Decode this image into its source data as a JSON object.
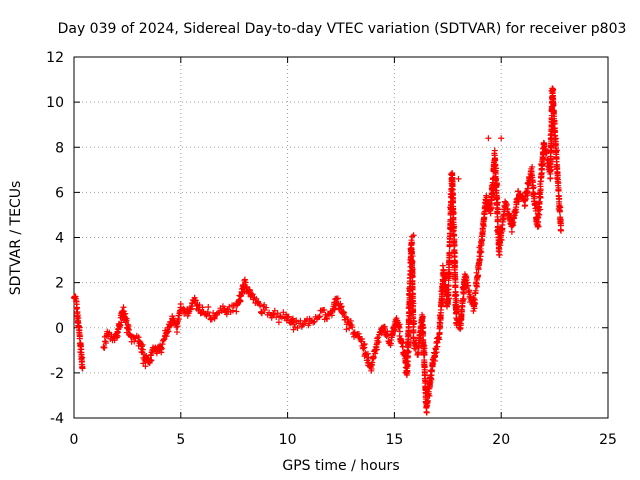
{
  "chart_data": {
    "type": "scatter",
    "title": "Day 039 of 2024, Sidereal Day-to-day VTEC variation (SDTVAR) for receiver p803",
    "xlabel": "GPS time / hours",
    "ylabel": "SDTVAR / TECUs",
    "xlim": [
      0,
      25
    ],
    "ylim": [
      -4,
      12
    ],
    "xticks": [
      0,
      5,
      10,
      15,
      20,
      25
    ],
    "yticks": [
      -4,
      -2,
      0,
      2,
      4,
      6,
      8,
      10,
      12
    ],
    "grid": true,
    "marker": "+",
    "marker_color": "#ff0000",
    "series": [
      {
        "name": "SDTVAR",
        "trace": [
          [
            0.0,
            1.5
          ],
          [
            0.1,
            1.1
          ],
          [
            0.2,
            0.2
          ],
          [
            0.3,
            -0.7
          ],
          [
            0.4,
            -1.8
          ],
          [
            1.4,
            -0.8
          ],
          [
            1.6,
            -0.3
          ],
          [
            1.8,
            -0.5
          ],
          [
            2.0,
            -0.4
          ],
          [
            2.3,
            0.8
          ],
          [
            2.5,
            0.1
          ],
          [
            2.7,
            -0.6
          ],
          [
            3.0,
            -0.5
          ],
          [
            3.3,
            -1.3
          ],
          [
            3.5,
            -1.6
          ],
          [
            3.7,
            -1.0
          ],
          [
            4.0,
            -1.0
          ],
          [
            4.2,
            -0.6
          ],
          [
            4.6,
            0.4
          ],
          [
            4.8,
            0.0
          ],
          [
            5.0,
            0.9
          ],
          [
            5.3,
            0.7
          ],
          [
            5.6,
            1.2
          ],
          [
            6.0,
            0.6
          ],
          [
            6.4,
            0.5
          ],
          [
            6.8,
            0.7
          ],
          [
            7.2,
            0.9
          ],
          [
            7.6,
            0.8
          ],
          [
            8.0,
            2.0
          ],
          [
            8.4,
            1.3
          ],
          [
            8.8,
            0.8
          ],
          [
            9.2,
            0.7
          ],
          [
            9.6,
            0.6
          ],
          [
            10.0,
            0.5
          ],
          [
            10.4,
            0.1
          ],
          [
            10.8,
            0.2
          ],
          [
            11.2,
            0.4
          ],
          [
            11.6,
            0.7
          ],
          [
            12.0,
            0.5
          ],
          [
            12.3,
            1.3
          ],
          [
            12.7,
            0.4
          ],
          [
            13.1,
            -0.2
          ],
          [
            13.5,
            -0.7
          ],
          [
            13.9,
            -1.8
          ],
          [
            14.2,
            -0.6
          ],
          [
            14.5,
            0.0
          ],
          [
            14.8,
            -0.7
          ],
          [
            15.1,
            0.4
          ],
          [
            15.4,
            -0.9
          ],
          [
            15.6,
            -2.0
          ],
          [
            15.8,
            3.9
          ],
          [
            15.9,
            -0.6
          ],
          [
            16.1,
            -1.1
          ],
          [
            16.3,
            0.5
          ],
          [
            16.5,
            -3.6
          ],
          [
            16.7,
            -2.2
          ],
          [
            16.9,
            -1.0
          ],
          [
            17.1,
            -0.4
          ],
          [
            17.3,
            2.5
          ],
          [
            17.5,
            1.0
          ],
          [
            17.7,
            6.9
          ],
          [
            17.9,
            0.3
          ],
          [
            18.1,
            0.1
          ],
          [
            18.3,
            2.4
          ],
          [
            18.5,
            1.6
          ],
          [
            18.7,
            0.9
          ],
          [
            18.9,
            2.4
          ],
          [
            19.1,
            4.0
          ],
          [
            19.3,
            5.8
          ],
          [
            19.5,
            5.1
          ],
          [
            19.7,
            7.7
          ],
          [
            19.9,
            3.4
          ],
          [
            20.2,
            5.6
          ],
          [
            20.5,
            4.4
          ],
          [
            20.8,
            6.0
          ],
          [
            21.1,
            5.5
          ],
          [
            21.4,
            7.0
          ],
          [
            21.7,
            4.5
          ],
          [
            22.0,
            8.2
          ],
          [
            22.3,
            6.8
          ],
          [
            22.4,
            10.6
          ],
          [
            22.6,
            7.3
          ],
          [
            22.8,
            4.3
          ]
        ],
        "stray_points": [
          [
            18.0,
            6.6
          ],
          [
            19.4,
            8.4
          ],
          [
            20.0,
            8.4
          ],
          [
            15.9,
            4.1
          ]
        ]
      }
    ]
  }
}
